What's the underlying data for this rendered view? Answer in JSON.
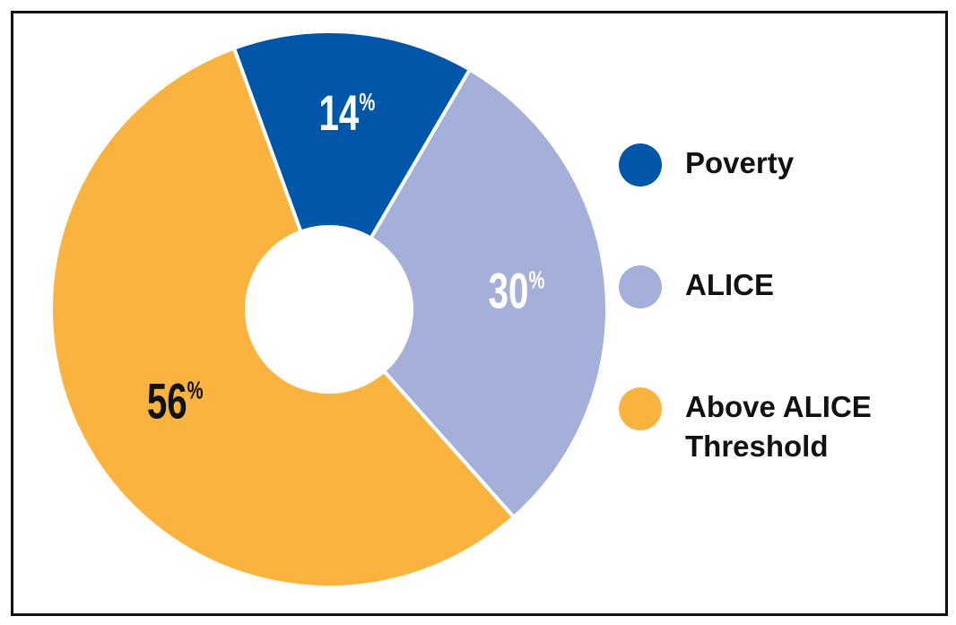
{
  "chart_data": {
    "type": "pie",
    "variant": "donut",
    "categories": [
      "Poverty",
      "ALICE",
      "Above ALICE Threshold"
    ],
    "values": [
      14,
      30,
      56
    ],
    "unit": "%",
    "data_labels": [
      "14",
      "30",
      "56"
    ],
    "colors": [
      "#0056a8",
      "#a5b0da",
      "#fbb33f"
    ],
    "label_colors": [
      "#ffffff",
      "#ffffff",
      "#111111"
    ],
    "legend_position": "right"
  },
  "legend": {
    "items": [
      {
        "label": "Poverty",
        "color": "#0056a8"
      },
      {
        "label": "ALICE",
        "color": "#a5b0da"
      },
      {
        "label": "Above ALICE Threshold",
        "color": "#fbb33f"
      }
    ]
  }
}
